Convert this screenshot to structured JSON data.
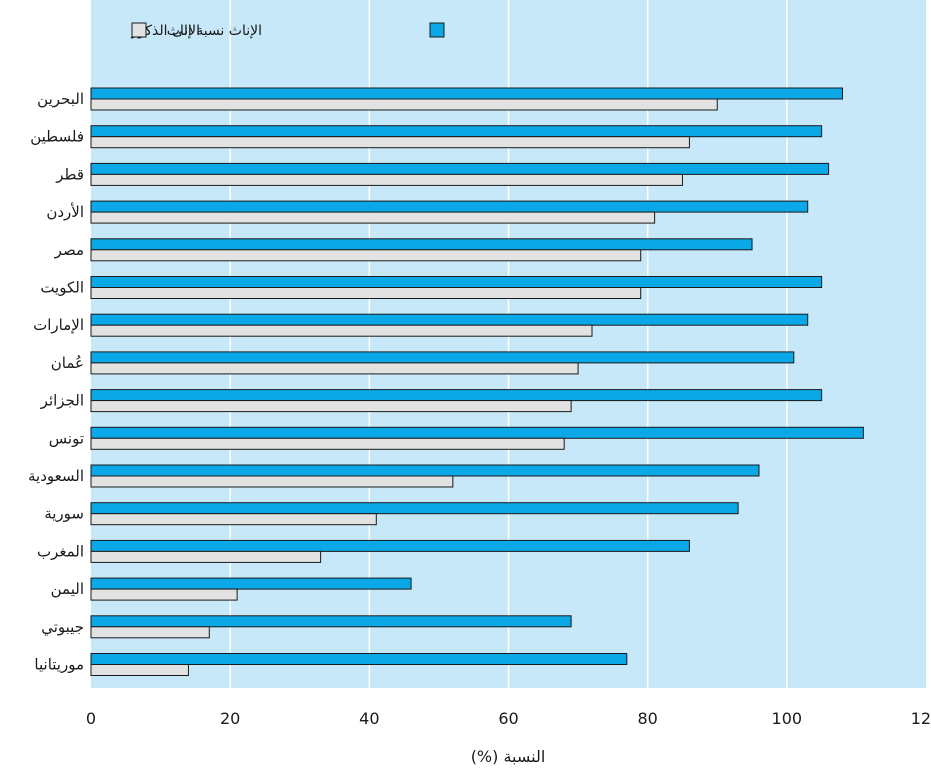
{
  "chart_data": {
    "type": "bar",
    "orientation": "horizontal",
    "categories": [
      "البحرين",
      "فلسطين",
      "قطر",
      "الأردن",
      "مصر",
      "الكويت",
      "الإمارات",
      "عُمان",
      "الجزائر",
      "تونس",
      "السعودية",
      "سورية",
      "المغرب",
      "اليمن",
      "جيبوتي",
      "موريتانيا"
    ],
    "series": [
      {
        "name": "الإناث نسبة الى الذكور",
        "color": "#0aa8e6",
        "values": [
          108,
          105,
          106,
          103,
          95,
          105,
          103,
          101,
          105,
          111,
          96,
          93,
          86,
          46,
          69,
          77
        ]
      },
      {
        "name": "الإناث",
        "color": "#e2e2e2",
        "values": [
          90,
          86,
          85,
          81,
          79,
          79,
          72,
          70,
          69,
          68,
          52,
          41,
          33,
          21,
          17,
          14
        ]
      }
    ],
    "xlabel": "النسبة (%)",
    "ylabel": "",
    "xlim": [
      0,
      120
    ],
    "xticks": [
      "0",
      "20",
      "40",
      "60",
      "80",
      "100",
      "120"
    ],
    "grid": true,
    "legend_position": "top",
    "plot_background": "#c6e8f8"
  }
}
